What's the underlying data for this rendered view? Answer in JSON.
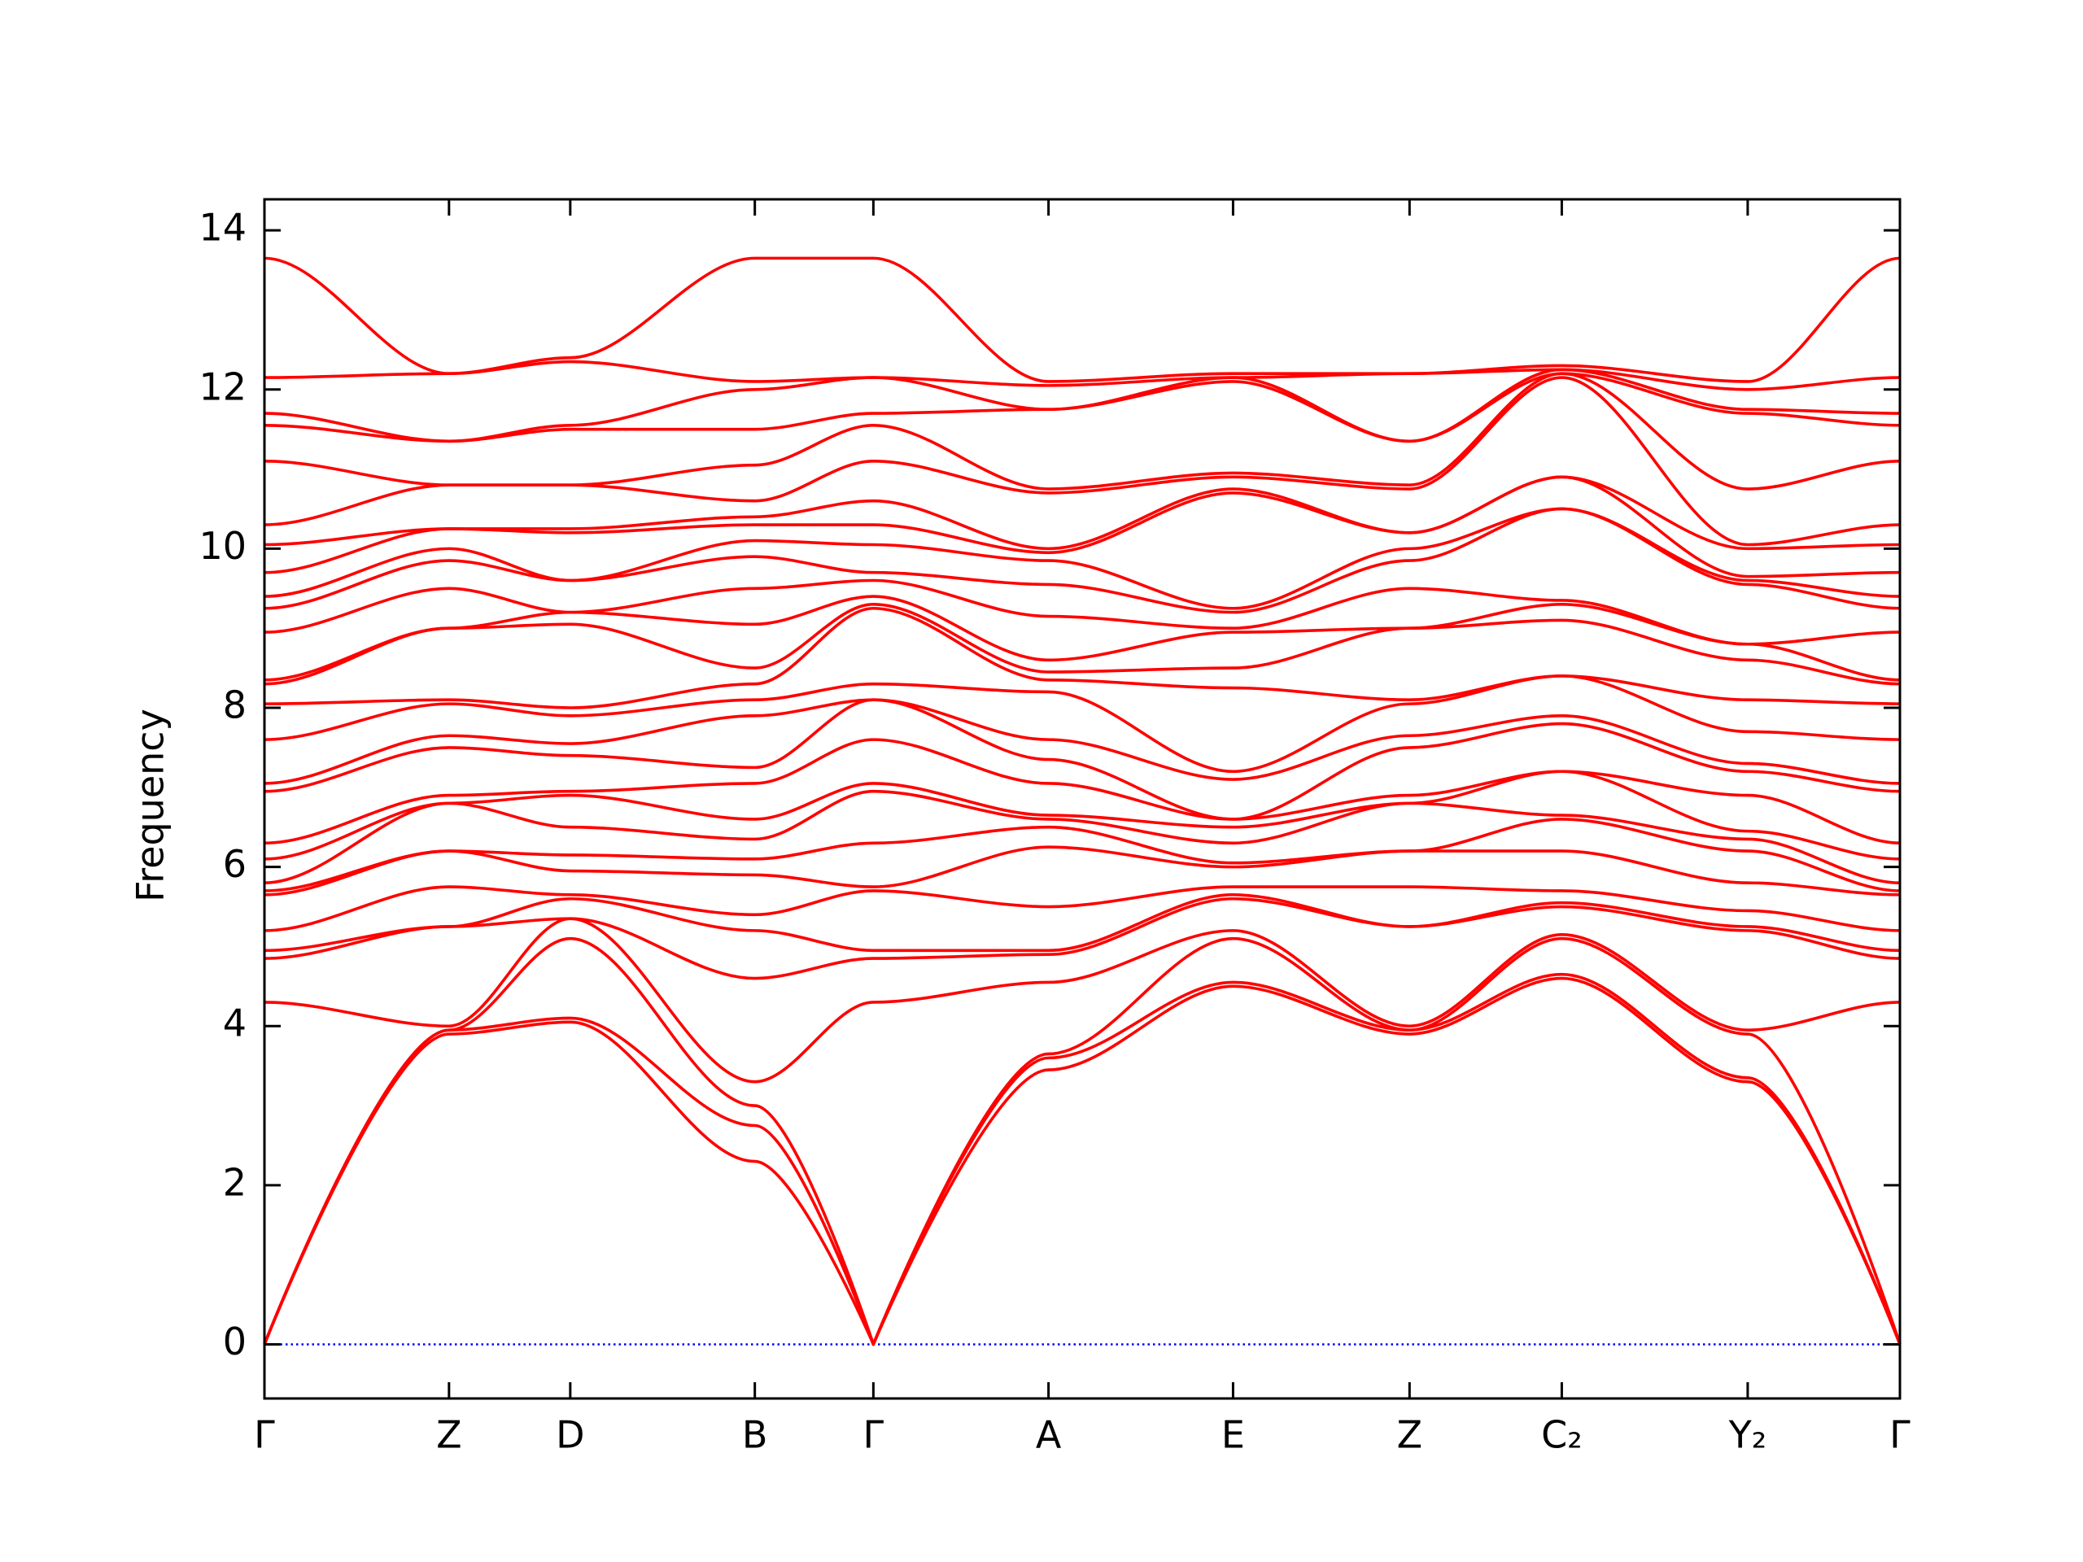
{
  "chart_data": {
    "type": "line",
    "y_label": "Frequency",
    "color": "#ff0000",
    "x": [
      0,
      0.137,
      0.227,
      0.364,
      0.452,
      0.582,
      0.719,
      0.85,
      0.963,
      1.101,
      1.214
    ],
    "xlim": [
      0,
      1.214
    ],
    "xticks": [
      {
        "value": 0,
        "label": "Γ"
      },
      {
        "value": 0.137,
        "label": "Z"
      },
      {
        "value": 0.227,
        "label": "D"
      },
      {
        "value": 0.364,
        "label": "B"
      },
      {
        "value": 0.452,
        "label": "Γ"
      },
      {
        "value": 0.582,
        "label": "A"
      },
      {
        "value": 0.719,
        "label": "E"
      },
      {
        "value": 0.85,
        "label": "Z"
      },
      {
        "value": 0.963,
        "label": "C₂"
      },
      {
        "value": 1.101,
        "label": "Y₂"
      },
      {
        "value": 1.214,
        "label": "Γ"
      }
    ],
    "ylim": [
      -0.68,
      14.39
    ],
    "yticks": [
      0,
      2,
      4,
      6,
      8,
      10,
      12,
      14
    ],
    "hline": {
      "y": 0,
      "color": "#0000ff",
      "style": "dotted"
    },
    "series": [
      {
        "values": [
          0,
          3.9,
          4.05,
          2.3,
          0,
          3.45,
          4.5,
          3.9,
          4.6,
          3.3,
          0
        ]
      },
      {
        "values": [
          0,
          3.95,
          4.1,
          2.75,
          0,
          3.6,
          4.55,
          3.95,
          4.65,
          3.35,
          0
        ]
      },
      {
        "values": [
          0,
          3.95,
          5.1,
          3.0,
          0,
          3.65,
          5.1,
          3.95,
          5.1,
          3.9,
          0
        ]
      },
      {
        "values": [
          4.3,
          4.0,
          5.35,
          3.3,
          4.3,
          4.55,
          5.2,
          4.0,
          5.15,
          3.95,
          4.3
        ]
      },
      {
        "values": [
          4.85,
          5.25,
          5.35,
          4.6,
          4.85,
          4.9,
          5.6,
          5.25,
          5.5,
          5.2,
          4.85
        ]
      },
      {
        "values": [
          4.95,
          5.25,
          5.6,
          5.2,
          4.95,
          4.95,
          5.65,
          5.25,
          5.55,
          5.25,
          4.95
        ]
      },
      {
        "values": [
          5.2,
          5.75,
          5.65,
          5.4,
          5.7,
          5.5,
          5.75,
          5.75,
          5.7,
          5.45,
          5.2
        ]
      },
      {
        "values": [
          5.65,
          6.2,
          5.95,
          5.9,
          5.75,
          6.25,
          6.0,
          6.2,
          6.2,
          5.8,
          5.65
        ]
      },
      {
        "values": [
          5.7,
          6.2,
          6.15,
          6.1,
          6.3,
          6.5,
          6.05,
          6.2,
          6.6,
          6.2,
          5.7
        ]
      },
      {
        "values": [
          5.8,
          6.8,
          6.5,
          6.35,
          6.95,
          6.6,
          6.3,
          6.8,
          6.65,
          6.35,
          5.8
        ]
      },
      {
        "values": [
          6.1,
          6.8,
          6.9,
          6.6,
          7.05,
          6.65,
          6.5,
          6.8,
          7.2,
          6.45,
          6.1
        ]
      },
      {
        "values": [
          6.3,
          6.9,
          6.95,
          7.05,
          7.6,
          7.05,
          6.6,
          6.9,
          7.2,
          6.9,
          6.3
        ]
      },
      {
        "values": [
          6.95,
          7.5,
          7.4,
          7.25,
          8.1,
          7.35,
          6.6,
          7.5,
          7.8,
          7.2,
          6.95
        ]
      },
      {
        "values": [
          7.05,
          7.65,
          7.55,
          7.9,
          8.1,
          7.6,
          7.1,
          7.65,
          7.9,
          7.3,
          7.05
        ]
      },
      {
        "values": [
          7.6,
          8.05,
          7.9,
          8.1,
          8.3,
          8.2,
          7.2,
          8.05,
          8.4,
          7.7,
          7.6
        ]
      },
      {
        "values": [
          8.05,
          8.1,
          8.0,
          8.3,
          9.25,
          8.35,
          8.25,
          8.1,
          8.4,
          8.1,
          8.05
        ]
      },
      {
        "values": [
          8.3,
          9.0,
          9.05,
          8.5,
          9.3,
          8.45,
          8.5,
          9.0,
          9.1,
          8.6,
          8.3
        ]
      },
      {
        "values": [
          8.35,
          9.0,
          9.2,
          9.05,
          9.4,
          8.6,
          8.95,
          9.0,
          9.3,
          8.8,
          8.35
        ]
      },
      {
        "values": [
          8.95,
          9.5,
          9.2,
          9.5,
          9.6,
          9.15,
          9.0,
          9.5,
          9.35,
          8.8,
          8.95
        ]
      },
      {
        "values": [
          9.25,
          9.85,
          9.6,
          9.9,
          9.7,
          9.55,
          9.2,
          9.85,
          10.5,
          9.55,
          9.25
        ]
      },
      {
        "values": [
          9.4,
          10.0,
          9.6,
          10.1,
          10.05,
          9.85,
          9.25,
          10.0,
          10.5,
          9.6,
          9.4
        ]
      },
      {
        "values": [
          9.7,
          10.25,
          10.2,
          10.3,
          10.3,
          9.95,
          10.7,
          10.2,
          10.9,
          9.65,
          9.7
        ]
      },
      {
        "values": [
          10.05,
          10.25,
          10.25,
          10.4,
          10.6,
          10.0,
          10.75,
          10.2,
          10.9,
          10.0,
          10.05
        ]
      },
      {
        "values": [
          10.3,
          10.8,
          10.8,
          10.6,
          11.1,
          10.7,
          10.9,
          10.75,
          12.15,
          10.05,
          10.3
        ]
      },
      {
        "values": [
          11.1,
          10.8,
          10.8,
          11.05,
          11.55,
          10.75,
          10.95,
          10.8,
          12.2,
          10.75,
          11.1
        ]
      },
      {
        "values": [
          11.55,
          11.35,
          11.5,
          11.5,
          11.7,
          11.75,
          12.1,
          11.35,
          12.2,
          11.7,
          11.55
        ]
      },
      {
        "values": [
          11.7,
          11.35,
          11.55,
          12.0,
          12.15,
          11.75,
          12.15,
          11.35,
          12.25,
          11.75,
          11.7
        ]
      },
      {
        "values": [
          12.15,
          12.2,
          12.35,
          12.1,
          12.15,
          12.05,
          12.15,
          12.2,
          12.25,
          12.0,
          12.15
        ]
      },
      {
        "values": [
          13.65,
          12.2,
          12.4,
          13.65,
          13.65,
          12.1,
          12.2,
          12.2,
          12.3,
          12.1,
          13.65
        ]
      }
    ]
  }
}
